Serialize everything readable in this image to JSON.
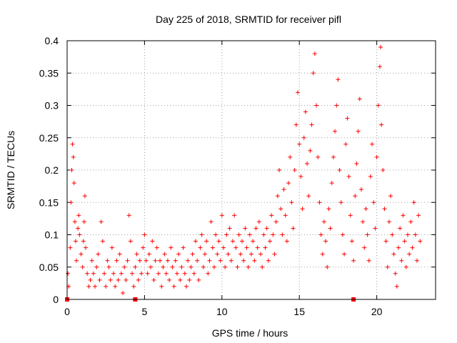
{
  "chart_data": {
    "type": "scatter",
    "title": "Day 225 of 2018, SRMTID for receiver pifl",
    "xlabel": "GPS time / hours",
    "ylabel": "SRMTID / TECUs",
    "xlim": [
      0,
      23.8
    ],
    "ylim": [
      0,
      0.4
    ],
    "xticks": [
      0,
      5,
      10,
      15,
      20
    ],
    "xtick_labels": [
      "0",
      "5",
      "10",
      "15",
      "20"
    ],
    "yticks": [
      0,
      0.05,
      0.1,
      0.15,
      0.2,
      0.25,
      0.3,
      0.35,
      0.4
    ],
    "ytick_labels": [
      "0",
      "0.05",
      "0.1",
      "0.15",
      "0.2",
      "0.25",
      "0.3",
      "0.35",
      "0.4"
    ],
    "grid": true,
    "marker": "+",
    "color": "#ff0000",
    "series": [
      {
        "name": "SRMTID",
        "points": [
          [
            0.05,
            0.04
          ],
          [
            0.1,
            0.02
          ],
          [
            0.2,
            0.08
          ],
          [
            0.25,
            0.15
          ],
          [
            0.3,
            0.2
          ],
          [
            0.35,
            0.24
          ],
          [
            0.4,
            0.22
          ],
          [
            0.45,
            0.18
          ],
          [
            0.5,
            0.12
          ],
          [
            0.55,
            0.09
          ],
          [
            0.6,
            0.06
          ],
          [
            0.7,
            0.11
          ],
          [
            0.75,
            0.13
          ],
          [
            0.8,
            0.1
          ],
          [
            0.9,
            0.07
          ],
          [
            1.0,
            0.05
          ],
          [
            1.05,
            0.09
          ],
          [
            1.1,
            0.12
          ],
          [
            1.15,
            0.16
          ],
          [
            1.2,
            0.08
          ],
          [
            1.3,
            0.04
          ],
          [
            1.4,
            0.02
          ],
          [
            1.5,
            0.03
          ],
          [
            1.6,
            0.06
          ],
          [
            1.7,
            0.04
          ],
          [
            1.8,
            0.02
          ],
          [
            1.9,
            0.05
          ],
          [
            2.0,
            0.07
          ],
          [
            2.1,
            0.03
          ],
          [
            2.2,
            0.12
          ],
          [
            2.3,
            0.09
          ],
          [
            2.4,
            0.04
          ],
          [
            2.5,
            0.02
          ],
          [
            2.6,
            0.06
          ],
          [
            2.7,
            0.05
          ],
          [
            2.8,
            0.03
          ],
          [
            2.9,
            0.08
          ],
          [
            3.0,
            0.04
          ],
          [
            3.1,
            0.02
          ],
          [
            3.2,
            0.06
          ],
          [
            3.3,
            0.03
          ],
          [
            3.4,
            0.07
          ],
          [
            3.5,
            0.04
          ],
          [
            3.6,
            0.01
          ],
          [
            3.7,
            0.05
          ],
          [
            3.8,
            0.03
          ],
          [
            3.9,
            0.06
          ],
          [
            4.0,
            0.13
          ],
          [
            4.1,
            0.09
          ],
          [
            4.2,
            0.04
          ],
          [
            4.3,
            0.02
          ],
          [
            4.4,
            0.05
          ],
          [
            4.5,
            0.07
          ],
          [
            4.6,
            0.03
          ],
          [
            4.7,
            0.06
          ],
          [
            4.8,
            0.04
          ],
          [
            4.9,
            0.08
          ],
          [
            5.0,
            0.1
          ],
          [
            5.1,
            0.06
          ],
          [
            5.2,
            0.04
          ],
          [
            5.3,
            0.07
          ],
          [
            5.4,
            0.05
          ],
          [
            5.5,
            0.09
          ],
          [
            5.6,
            0.03
          ],
          [
            5.7,
            0.06
          ],
          [
            5.8,
            0.08
          ],
          [
            5.9,
            0.04
          ],
          [
            6.0,
            0.06
          ],
          [
            6.1,
            0.02
          ],
          [
            6.2,
            0.05
          ],
          [
            6.3,
            0.07
          ],
          [
            6.4,
            0.04
          ],
          [
            6.5,
            0.06
          ],
          [
            6.6,
            0.03
          ],
          [
            6.7,
            0.08
          ],
          [
            6.8,
            0.05
          ],
          [
            6.9,
            0.02
          ],
          [
            7.0,
            0.06
          ],
          [
            7.1,
            0.04
          ],
          [
            7.2,
            0.07
          ],
          [
            7.3,
            0.03
          ],
          [
            7.4,
            0.05
          ],
          [
            7.5,
            0.08
          ],
          [
            7.6,
            0.04
          ],
          [
            7.7,
            0.02
          ],
          [
            7.8,
            0.06
          ],
          [
            7.9,
            0.03
          ],
          [
            8.0,
            0.05
          ],
          [
            8.1,
            0.07
          ],
          [
            8.2,
            0.04
          ],
          [
            8.3,
            0.09
          ],
          [
            8.4,
            0.06
          ],
          [
            8.5,
            0.03
          ],
          [
            8.6,
            0.08
          ],
          [
            8.7,
            0.1
          ],
          [
            8.8,
            0.05
          ],
          [
            8.9,
            0.07
          ],
          [
            9.0,
            0.09
          ],
          [
            9.1,
            0.04
          ],
          [
            9.2,
            0.06
          ],
          [
            9.3,
            0.12
          ],
          [
            9.4,
            0.08
          ],
          [
            9.5,
            0.05
          ],
          [
            9.6,
            0.1
          ],
          [
            9.7,
            0.07
          ],
          [
            9.8,
            0.09
          ],
          [
            9.9,
            0.06
          ],
          [
            10.0,
            0.13
          ],
          [
            10.1,
            0.08
          ],
          [
            10.2,
            0.05
          ],
          [
            10.3,
            0.1
          ],
          [
            10.4,
            0.07
          ],
          [
            10.5,
            0.11
          ],
          [
            10.6,
            0.06
          ],
          [
            10.7,
            0.09
          ],
          [
            10.8,
            0.13
          ],
          [
            10.9,
            0.08
          ],
          [
            11.0,
            0.05
          ],
          [
            11.1,
            0.1
          ],
          [
            11.2,
            0.07
          ],
          [
            11.3,
            0.09
          ],
          [
            11.4,
            0.06
          ],
          [
            11.5,
            0.11
          ],
          [
            11.6,
            0.08
          ],
          [
            11.7,
            0.05
          ],
          [
            11.8,
            0.1
          ],
          [
            11.9,
            0.07
          ],
          [
            12.0,
            0.09
          ],
          [
            12.1,
            0.06
          ],
          [
            12.2,
            0.11
          ],
          [
            12.3,
            0.08
          ],
          [
            12.4,
            0.12
          ],
          [
            12.5,
            0.07
          ],
          [
            12.6,
            0.05
          ],
          [
            12.7,
            0.1
          ],
          [
            12.8,
            0.08
          ],
          [
            12.9,
            0.11
          ],
          [
            13.0,
            0.06
          ],
          [
            13.1,
            0.09
          ],
          [
            13.2,
            0.13
          ],
          [
            13.3,
            0.1
          ],
          [
            13.4,
            0.07
          ],
          [
            13.5,
            0.12
          ],
          [
            13.6,
            0.16
          ],
          [
            13.7,
            0.2
          ],
          [
            13.8,
            0.14
          ],
          [
            13.9,
            0.1
          ],
          [
            14.0,
            0.17
          ],
          [
            14.1,
            0.13
          ],
          [
            14.2,
            0.09
          ],
          [
            14.3,
            0.18
          ],
          [
            14.4,
            0.22
          ],
          [
            14.5,
            0.15
          ],
          [
            14.6,
            0.11
          ],
          [
            14.7,
            0.2
          ],
          [
            14.8,
            0.27
          ],
          [
            14.9,
            0.32
          ],
          [
            15.0,
            0.24
          ],
          [
            15.1,
            0.19
          ],
          [
            15.2,
            0.14
          ],
          [
            15.3,
            0.25
          ],
          [
            15.4,
            0.29
          ],
          [
            15.5,
            0.21
          ],
          [
            15.6,
            0.16
          ],
          [
            15.7,
            0.23
          ],
          [
            15.8,
            0.27
          ],
          [
            15.9,
            0.35
          ],
          [
            16.0,
            0.38
          ],
          [
            16.1,
            0.3
          ],
          [
            16.2,
            0.22
          ],
          [
            16.3,
            0.15
          ],
          [
            16.4,
            0.1
          ],
          [
            16.5,
            0.07
          ],
          [
            16.6,
            0.12
          ],
          [
            16.7,
            0.09
          ],
          [
            16.8,
            0.05
          ],
          [
            16.9,
            0.14
          ],
          [
            17.0,
            0.11
          ],
          [
            17.1,
            0.18
          ],
          [
            17.2,
            0.22
          ],
          [
            17.3,
            0.26
          ],
          [
            17.4,
            0.3
          ],
          [
            17.5,
            0.34
          ],
          [
            17.6,
            0.2
          ],
          [
            17.7,
            0.15
          ],
          [
            17.8,
            0.1
          ],
          [
            17.9,
            0.07
          ],
          [
            18.0,
            0.24
          ],
          [
            18.1,
            0.28
          ],
          [
            18.2,
            0.19
          ],
          [
            18.3,
            0.13
          ],
          [
            18.4,
            0.09
          ],
          [
            18.5,
            0.06
          ],
          [
            18.6,
            0.16
          ],
          [
            18.7,
            0.21
          ],
          [
            18.8,
            0.26
          ],
          [
            18.9,
            0.31
          ],
          [
            19.0,
            0.17
          ],
          [
            19.1,
            0.12
          ],
          [
            19.2,
            0.08
          ],
          [
            19.3,
            0.14
          ],
          [
            19.4,
            0.1
          ],
          [
            19.5,
            0.06
          ],
          [
            19.6,
            0.19
          ],
          [
            19.7,
            0.24
          ],
          [
            19.8,
            0.15
          ],
          [
            19.9,
            0.11
          ],
          [
            20.0,
            0.22
          ],
          [
            20.1,
            0.3
          ],
          [
            20.2,
            0.36
          ],
          [
            20.25,
            0.39
          ],
          [
            20.3,
            0.27
          ],
          [
            20.4,
            0.2
          ],
          [
            20.5,
            0.14
          ],
          [
            20.6,
            0.09
          ],
          [
            20.7,
            0.05
          ],
          [
            20.8,
            0.12
          ],
          [
            20.9,
            0.16
          ],
          [
            21.0,
            0.1
          ],
          [
            21.1,
            0.07
          ],
          [
            21.2,
            0.04
          ],
          [
            21.3,
            0.02
          ],
          [
            21.4,
            0.08
          ],
          [
            21.5,
            0.11
          ],
          [
            21.6,
            0.06
          ],
          [
            21.7,
            0.13
          ],
          [
            21.8,
            0.09
          ],
          [
            21.9,
            0.05
          ],
          [
            22.0,
            0.1
          ],
          [
            22.1,
            0.07
          ],
          [
            22.2,
            0.12
          ],
          [
            22.3,
            0.08
          ],
          [
            22.4,
            0.15
          ],
          [
            22.5,
            0.1
          ],
          [
            22.6,
            0.06
          ],
          [
            22.7,
            0.13
          ],
          [
            22.8,
            0.09
          ]
        ]
      }
    ],
    "axis_markers_x": [
      0,
      4.4,
      18.5
    ]
  }
}
